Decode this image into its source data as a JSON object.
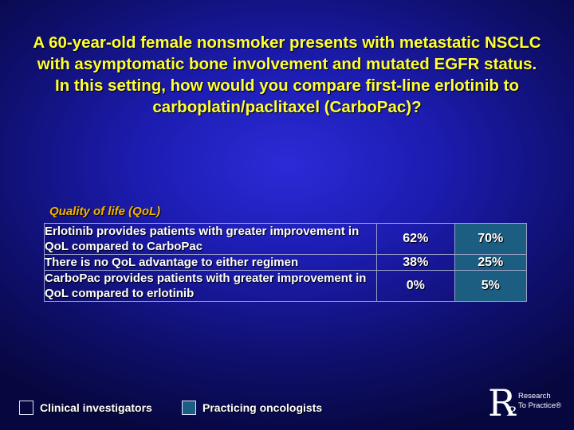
{
  "title": "A 60-year-old female nonsmoker presents with metastatic NSCLC with asymptomatic bone involvement and mutated EGFR status. In this setting, how would you compare first-line erlotinib to carboplatin/paclitaxel (CarboPac)?",
  "section_header": "Quality of life (QoL)",
  "rows": [
    {
      "statement": "Erlotinib provides patients with greater improvement in QoL compared to CarboPac",
      "clinical_investigators": "62%",
      "practicing_oncologists": "70%"
    },
    {
      "statement": "There is no QoL advantage to either regimen",
      "clinical_investigators": "38%",
      "practicing_oncologists": "25%"
    },
    {
      "statement": "CarboPac provides patients with greater improvement in QoL compared to erlotinib",
      "clinical_investigators": "0%",
      "practicing_oncologists": "5%"
    }
  ],
  "legend": {
    "clinical_investigators": "Clinical investigators",
    "practicing_oncologists": "Practicing oncologists"
  },
  "logo": {
    "letters": "R",
    "subletter": "P",
    "line1": "Research",
    "line2": "To Practice®"
  },
  "colors": {
    "title": "#ffff33",
    "section_header": "#f4b400",
    "practicing_oncologists_fill": "#1c5d82",
    "background": "#1c1cb0"
  }
}
